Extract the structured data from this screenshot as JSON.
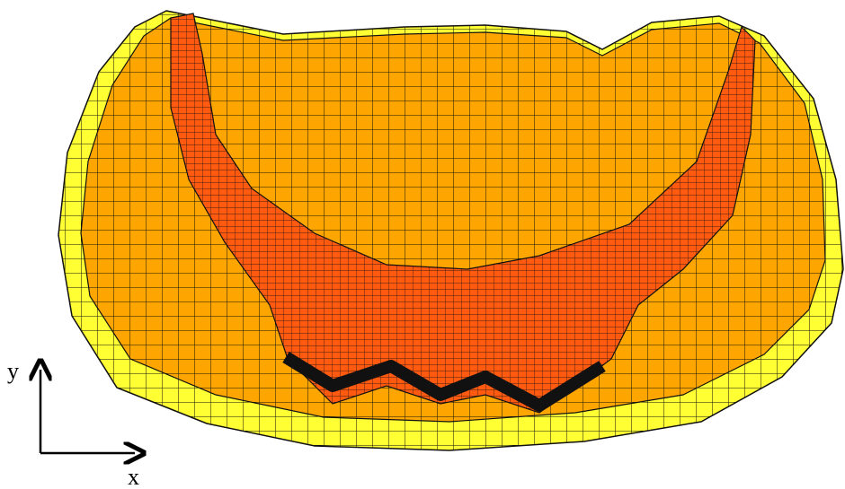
{
  "axes": {
    "y_label": "y",
    "x_label": "x"
  }
}
